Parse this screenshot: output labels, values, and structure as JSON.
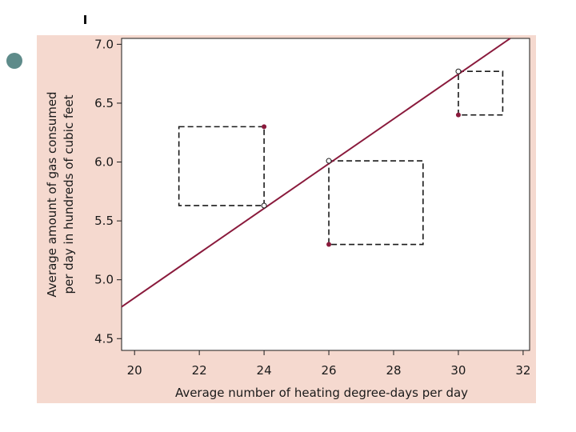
{
  "chart_data": {
    "type": "scatter",
    "title": "",
    "xlabel": "Average number of heating degree-days per day",
    "ylabel": [
      "Average amount of gas consumed",
      "per day in hundreds of cubic feet"
    ],
    "xlim": [
      19.6,
      32.2
    ],
    "ylim": [
      4.4,
      7.05
    ],
    "xticks": [
      20,
      22,
      24,
      26,
      28,
      30,
      32
    ],
    "yticks": [
      4.5,
      5.0,
      5.5,
      6.0,
      6.5,
      7.0
    ],
    "xtick_labels": [
      "20",
      "22",
      "24",
      "26",
      "28",
      "30",
      "32"
    ],
    "ytick_labels": [
      "4.5",
      "5.0",
      "5.5",
      "6.0",
      "6.5",
      "7.0"
    ],
    "grid": false,
    "series": [
      {
        "role": "observed",
        "x": [
          24,
          26,
          30
        ],
        "y": [
          6.3,
          5.3,
          6.4
        ]
      },
      {
        "role": "predicted",
        "x": [
          24,
          26,
          30
        ],
        "y": [
          5.63,
          6.01,
          6.77
        ]
      }
    ],
    "regression_line": {
      "x": [
        19.6,
        31.6
      ],
      "y": [
        4.77,
        7.05
      ]
    },
    "squared_residual_boxes": [
      {
        "x_from": 21.37,
        "x_to": 24,
        "y_from": 5.63,
        "y_to": 6.3
      },
      {
        "x_from": 26,
        "x_to": 28.91,
        "y_from": 5.3,
        "y_to": 6.01
      },
      {
        "x_from": 30,
        "x_to": 31.37,
        "y_from": 6.4,
        "y_to": 6.77
      }
    ],
    "colors": {
      "panel": "#f5d9cf",
      "plot_area": "#ffffff",
      "line": "#8a1a3c",
      "observed_point": "#8a1a3c",
      "predicted_point_fill": "#ffffff",
      "box_stroke": "#1a1a1a"
    }
  }
}
